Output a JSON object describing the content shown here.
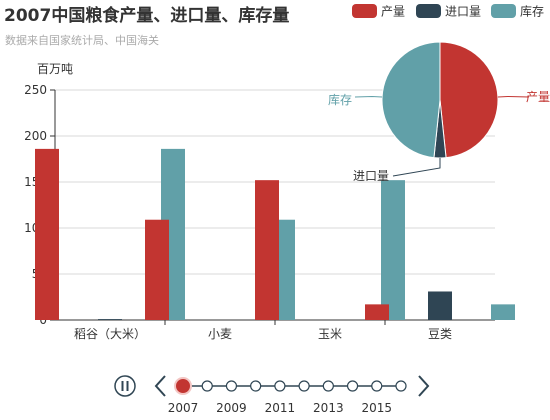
{
  "chart_data": {
    "type": "bar",
    "title": "2007中国粮食产量、进口量、库存量",
    "subtitle": "数据来自国家统计局、中国海关",
    "y_unit": "百万吨",
    "ylim": [
      0,
      250
    ],
    "y_ticks": [
      0,
      50,
      100,
      150,
      200,
      250
    ],
    "grid": true,
    "legend_position": "top-right",
    "categories": [
      "稻谷（大米）",
      "小麦",
      "玉米",
      "豆类"
    ],
    "series": [
      {
        "name": "产量",
        "color": "#c23531",
        "values": [
          186,
          109,
          152,
          17
        ]
      },
      {
        "name": "进口量",
        "color": "#2f4554",
        "values": [
          1,
          0,
          0,
          31
        ]
      },
      {
        "name": "库存",
        "color": "#61a0a8",
        "values": [
          186,
          109,
          152,
          17
        ]
      }
    ],
    "pie": {
      "type": "pie",
      "slices": [
        {
          "name": "产量",
          "value": 464,
          "color": "#c23531"
        },
        {
          "name": "进口量",
          "value": 32,
          "color": "#2f4554"
        },
        {
          "name": "库存",
          "value": 464,
          "color": "#61a0a8"
        }
      ]
    }
  },
  "timeline": {
    "play_icon": "pause-icon",
    "prev_icon": "chevron-left-icon",
    "next_icon": "chevron-right-icon",
    "years": [
      2007,
      2008,
      2009,
      2010,
      2011,
      2012,
      2013,
      2014,
      2015,
      2016
    ],
    "labels": [
      "2007",
      "2009",
      "2011",
      "2013",
      "2015"
    ],
    "current": "2007",
    "active_color": "#c23531",
    "line_color": "#304654"
  }
}
